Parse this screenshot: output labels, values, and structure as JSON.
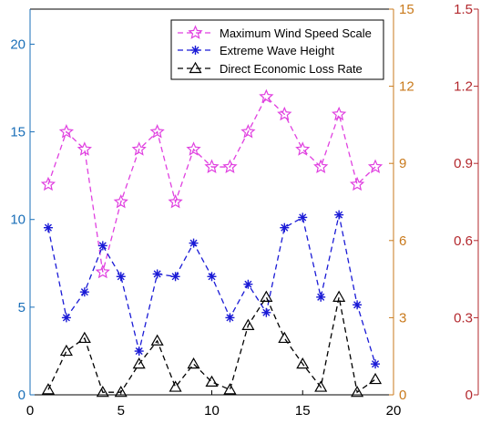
{
  "chart_data": {
    "type": "line",
    "x": [
      1,
      2,
      3,
      4,
      5,
      6,
      7,
      8,
      9,
      10,
      11,
      12,
      13,
      14,
      15,
      16,
      17,
      18,
      19
    ],
    "xlim": [
      0,
      20
    ],
    "xticks": [
      0,
      5,
      10,
      15,
      20
    ],
    "axes": {
      "left": {
        "ylim": [
          0,
          22
        ],
        "ticks": [
          0,
          5,
          10,
          15,
          20
        ],
        "color": "#1a6fb8"
      },
      "right1": {
        "ylim": [
          0,
          15
        ],
        "ticks": [
          0,
          3,
          6,
          9,
          12,
          15
        ],
        "color": "#c97a1c"
      },
      "right2": {
        "ylim": [
          0,
          1.5
        ],
        "ticks": [
          "0",
          "0.3",
          "0.6",
          "0.9",
          "1.2",
          "1.5"
        ],
        "color": "#b3282d"
      }
    },
    "series": [
      {
        "name": "Maximum Wind Speed Scale",
        "axis": "left",
        "color": "#e040e0",
        "marker": "star",
        "values": [
          12,
          15,
          14,
          7,
          11,
          14,
          15,
          11,
          14,
          13,
          13,
          15,
          17,
          16,
          14,
          13,
          16,
          12,
          13
        ]
      },
      {
        "name": "Extreme Wave Height",
        "axis": "right1",
        "color": "#1a1ad6",
        "marker": "asterisk",
        "values": [
          6.5,
          3.0,
          4.0,
          5.8,
          4.6,
          1.7,
          4.7,
          4.6,
          5.9,
          4.6,
          3.0,
          4.3,
          3.2,
          6.5,
          6.9,
          3.8,
          7.0,
          3.5,
          1.2
        ]
      },
      {
        "name": "Direct Economic Loss Rate",
        "axis": "right2",
        "color": "#000000",
        "marker": "triangle",
        "values": [
          0.02,
          0.17,
          0.22,
          0.01,
          0.01,
          0.12,
          0.21,
          0.03,
          0.12,
          0.05,
          0.02,
          0.27,
          0.38,
          0.22,
          0.12,
          0.03,
          0.38,
          0.01,
          0.06
        ]
      }
    ],
    "legend": "top-right",
    "grid": false
  }
}
